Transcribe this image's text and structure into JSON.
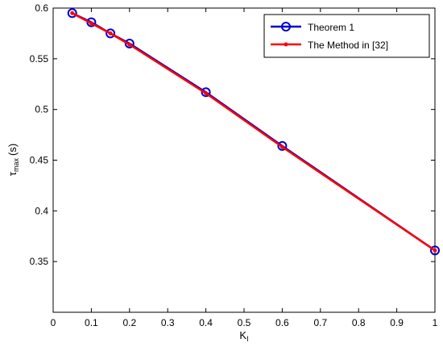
{
  "chart_data": {
    "type": "line",
    "xlabel": "K",
    "xlabel_sub": "I",
    "ylabel": "τ",
    "ylabel_sub": "max",
    "ylabel_unit": "(s)",
    "xlim": [
      0,
      1
    ],
    "ylim": [
      0.3,
      0.6
    ],
    "xticks": [
      0,
      0.1,
      0.2,
      0.3,
      0.4,
      0.5,
      0.6,
      0.7,
      0.8,
      0.9,
      1
    ],
    "xtick_labels": [
      "0",
      "0.1",
      "0.2",
      "0.3",
      "0.4",
      "0.5",
      "0.6",
      "0.7",
      "0.8",
      "0.9",
      "1"
    ],
    "yticks": [
      0.35,
      0.4,
      0.45,
      0.5,
      0.55,
      0.6
    ],
    "ytick_labels": [
      "0.35",
      "0.4",
      "0.45",
      "0.5",
      "0.55",
      "0.6"
    ],
    "grid": false,
    "legend_position": "top-right",
    "series": [
      {
        "name": "Theorem 1",
        "color": "#0000cc",
        "marker": "circle",
        "x": [
          0.05,
          0.1,
          0.15,
          0.2,
          0.4,
          0.6,
          1.0
        ],
        "y": [
          0.595,
          0.586,
          0.575,
          0.565,
          0.517,
          0.464,
          0.361
        ]
      },
      {
        "name": "The Method in [32]",
        "color": "#ff0000",
        "marker": "dot",
        "x": [
          0.05,
          0.1,
          0.15,
          0.2,
          0.4,
          0.6,
          1.0
        ],
        "y": [
          0.595,
          0.585,
          0.575,
          0.564,
          0.516,
          0.463,
          0.361
        ]
      }
    ]
  }
}
